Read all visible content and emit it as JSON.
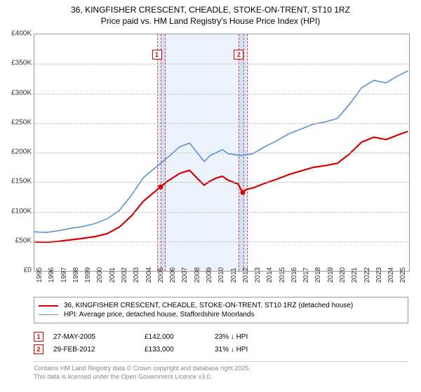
{
  "title_line1": "36, KINGFISHER CRESCENT, CHEADLE, STOKE-ON-TRENT, ST10 1RZ",
  "title_line2": "Price paid vs. HM Land Registry's House Price Index (HPI)",
  "chart": {
    "type": "line",
    "ylim": [
      0,
      400000
    ],
    "ytick_step": 50000,
    "yticks": [
      "£0",
      "£50K",
      "£100K",
      "£150K",
      "£200K",
      "£250K",
      "£300K",
      "£350K",
      "£400K"
    ],
    "xlim": [
      1995,
      2025.9
    ],
    "xticks": [
      "1995",
      "1996",
      "1997",
      "1998",
      "1999",
      "2000",
      "2001",
      "2002",
      "2003",
      "2004",
      "2005",
      "2006",
      "2007",
      "2008",
      "2009",
      "2010",
      "2011",
      "2012",
      "2013",
      "2014",
      "2015",
      "2016",
      "2017",
      "2018",
      "2019",
      "2020",
      "2021",
      "2022",
      "2023",
      "2024",
      "2025"
    ],
    "background_color": "#ffffff",
    "grid_color": "#bbbbbb",
    "series": [
      {
        "name": "hpi",
        "color": "#5b8fd6",
        "width": 1.6,
        "legend": "HPI: Average price, detached house, Staffordshire Moorlands",
        "points": [
          [
            1995,
            66000
          ],
          [
            1996,
            65000
          ],
          [
            1997,
            68000
          ],
          [
            1998,
            72000
          ],
          [
            1999,
            75000
          ],
          [
            2000,
            80000
          ],
          [
            2001,
            88000
          ],
          [
            2002,
            102000
          ],
          [
            2003,
            128000
          ],
          [
            2004,
            158000
          ],
          [
            2005,
            175000
          ],
          [
            2006,
            192000
          ],
          [
            2007,
            210000
          ],
          [
            2007.8,
            216000
          ],
          [
            2008.5,
            198000
          ],
          [
            2009,
            185000
          ],
          [
            2009.5,
            195000
          ],
          [
            2010,
            200000
          ],
          [
            2010.5,
            205000
          ],
          [
            2011,
            198000
          ],
          [
            2012,
            195000
          ],
          [
            2013,
            198000
          ],
          [
            2014,
            210000
          ],
          [
            2015,
            220000
          ],
          [
            2016,
            232000
          ],
          [
            2017,
            240000
          ],
          [
            2018,
            248000
          ],
          [
            2019,
            252000
          ],
          [
            2020,
            258000
          ],
          [
            2021,
            282000
          ],
          [
            2022,
            310000
          ],
          [
            2023,
            322000
          ],
          [
            2024,
            318000
          ],
          [
            2025,
            330000
          ],
          [
            2025.8,
            338000
          ]
        ]
      },
      {
        "name": "property",
        "color": "#d40000",
        "width": 2.2,
        "legend": "36, KINGFISHER CRESCENT, CHEADLE, STOKE-ON-TRENT, ST10 1RZ (detached house)",
        "points": [
          [
            1995,
            49000
          ],
          [
            1996,
            48500
          ],
          [
            1997,
            50000
          ],
          [
            1998,
            52500
          ],
          [
            1999,
            55000
          ],
          [
            2000,
            58000
          ],
          [
            2001,
            63000
          ],
          [
            2002,
            74000
          ],
          [
            2003,
            93000
          ],
          [
            2004,
            118000
          ],
          [
            2005,
            135000
          ],
          [
            2005.4,
            142000
          ],
          [
            2006,
            152000
          ],
          [
            2007,
            165000
          ],
          [
            2007.8,
            170000
          ],
          [
            2008.5,
            155000
          ],
          [
            2009,
            145000
          ],
          [
            2009.5,
            152000
          ],
          [
            2010,
            157000
          ],
          [
            2010.5,
            160000
          ],
          [
            2011,
            153000
          ],
          [
            2011.8,
            147000
          ],
          [
            2012.16,
            133000
          ],
          [
            2012.5,
            138000
          ],
          [
            2013,
            140000
          ],
          [
            2014,
            148000
          ],
          [
            2015,
            155000
          ],
          [
            2016,
            163000
          ],
          [
            2017,
            169000
          ],
          [
            2018,
            175000
          ],
          [
            2019,
            178000
          ],
          [
            2020,
            182000
          ],
          [
            2021,
            198000
          ],
          [
            2022,
            218000
          ],
          [
            2023,
            226000
          ],
          [
            2024,
            222000
          ],
          [
            2025,
            230000
          ],
          [
            2025.8,
            236000
          ]
        ]
      }
    ],
    "sale_markers": [
      {
        "n": "1",
        "x": 2005.4,
        "y": 142000,
        "band_width_years": 0.6
      },
      {
        "n": "2",
        "x": 2012.16,
        "y": 133000,
        "band_width_years": 0.6
      }
    ],
    "shaded_region": {
      "from": 2005.4,
      "to": 2012.16
    }
  },
  "sales": [
    {
      "n": "1",
      "date": "27-MAY-2005",
      "price": "£142,000",
      "diff": "23% ↓ HPI"
    },
    {
      "n": "2",
      "date": "29-FEB-2012",
      "price": "£133,000",
      "diff": "31% ↓ HPI"
    }
  ],
  "footer_line1": "Contains HM Land Registry data © Crown copyright and database right 2025.",
  "footer_line2": "This data is licensed under the Open Government Licence v3.0."
}
